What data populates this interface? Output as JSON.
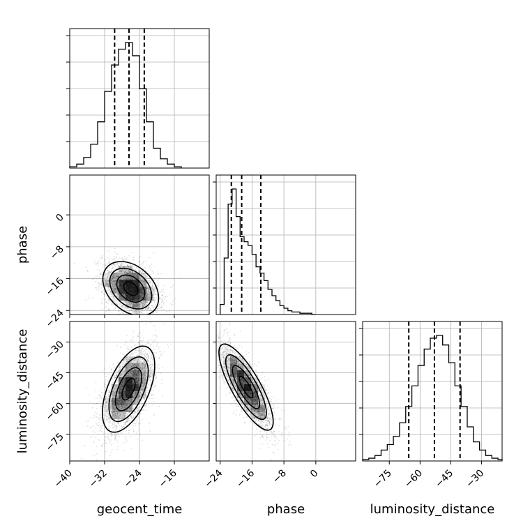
{
  "chart_data": {
    "type": "corner",
    "parameters": [
      "geocent_time",
      "phase",
      "luminosity_distance"
    ],
    "grid": true,
    "quantile_lines": "dashed",
    "axes": {
      "geocent_time": {
        "range": [
          -40,
          -8
        ],
        "ticks": [
          -40,
          -32,
          -24,
          -16
        ]
      },
      "phase": {
        "range": [
          -25,
          10
        ],
        "ticks": [
          -24,
          -16,
          -8,
          0
        ],
        "row_ticks": [
          -24,
          -16,
          -8,
          0
        ]
      },
      "luminosity_distance": {
        "range": [
          -88,
          -20
        ],
        "ticks": [
          -75,
          -60,
          -45,
          -30
        ]
      }
    },
    "histograms": [
      {
        "parameter": "geocent_time",
        "bin_edges": [
          -40,
          -38.4,
          -36.8,
          -35.2,
          -33.6,
          -32,
          -30.4,
          -28.8,
          -27.2,
          -25.6,
          -24,
          -22.4,
          -20.8,
          -19.2,
          -17.6,
          -16,
          -14.4
        ],
        "counts": [
          1,
          3,
          8,
          18,
          35,
          58,
          78,
          90,
          95,
          85,
          60,
          35,
          15,
          7,
          3,
          1
        ],
        "quantiles": [
          -29.7,
          -26.4,
          -22.9
        ]
      },
      {
        "parameter": "phase",
        "bin_edges": [
          -24,
          -23,
          -22,
          -21,
          -20,
          -19,
          -18,
          -17,
          -16,
          -15,
          -14,
          -13,
          -12,
          -11,
          -10,
          -9,
          -8,
          -7,
          -6,
          -5,
          -4,
          -3,
          -2,
          -1,
          0
        ],
        "counts": [
          8,
          45,
          88,
          100,
          78,
          62,
          58,
          55,
          48,
          38,
          33,
          27,
          20,
          15,
          11,
          7,
          5,
          3,
          2,
          2,
          1,
          1,
          1,
          0
        ],
        "quantiles": [
          -21.2,
          -18.6,
          -13.8
        ]
      },
      {
        "parameter": "luminosity_distance",
        "bin_edges": [
          -88,
          -85,
          -82,
          -79,
          -76,
          -73,
          -70,
          -67,
          -64,
          -61,
          -58,
          -55,
          -52,
          -49,
          -46,
          -43,
          -40,
          -37,
          -34,
          -31,
          -28,
          -25,
          -22,
          -20
        ],
        "counts": [
          1,
          2,
          4,
          8,
          12,
          18,
          28,
          40,
          55,
          70,
          82,
          90,
          92,
          85,
          72,
          55,
          40,
          25,
          14,
          8,
          4,
          2,
          1
        ],
        "quantiles": [
          -65.5,
          -53.0,
          -40.5
        ]
      }
    ],
    "scatter_2d": [
      {
        "x": "geocent_time",
        "y": "phase",
        "mean": [
          -26,
          -18.5
        ],
        "sd": [
          3.2,
          3.4
        ],
        "corr": -0.35,
        "n": 2600,
        "contour_levels": 4
      },
      {
        "x": "geocent_time",
        "y": "luminosity_distance",
        "mean": [
          -26.5,
          -53
        ],
        "sd": [
          3.0,
          10.5
        ],
        "corr": 0.55,
        "n": 2600,
        "contour_levels": 4
      },
      {
        "x": "phase",
        "y": "luminosity_distance",
        "mean": [
          -17.5,
          -52
        ],
        "sd": [
          3.4,
          10.5
        ],
        "corr": -0.8,
        "n": 2600,
        "contour_levels": 4
      }
    ]
  }
}
